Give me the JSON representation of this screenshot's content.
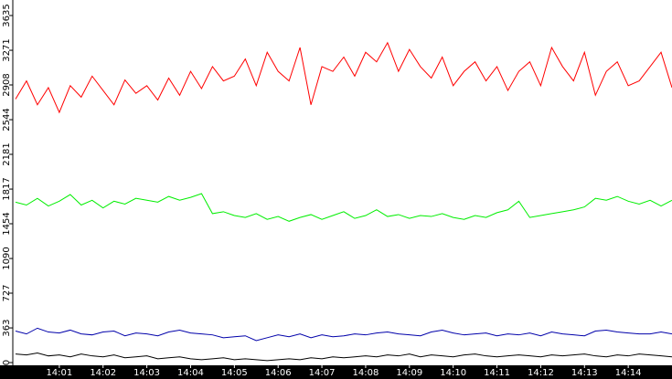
{
  "chart_data": {
    "type": "line",
    "x": [
      0,
      0.25,
      0.5,
      0.75,
      1,
      1.25,
      1.5,
      1.75,
      2,
      2.25,
      2.5,
      2.75,
      3,
      3.25,
      3.5,
      3.75,
      4,
      4.25,
      4.5,
      4.75,
      5,
      5.25,
      5.5,
      5.75,
      6,
      6.25,
      6.5,
      6.75,
      7,
      7.25,
      7.5,
      7.75,
      8,
      8.25,
      8.5,
      8.75,
      9,
      9.25,
      9.5,
      9.75,
      10,
      10.25,
      10.5,
      10.75,
      11,
      11.25,
      11.5,
      11.75,
      12,
      12.25,
      12.5,
      12.75,
      13,
      13.25,
      13.5,
      13.75,
      14,
      14.25,
      14.5,
      14.75,
      15
    ],
    "series": [
      {
        "color": "#ff0000",
        "values": [
          2760,
          2950,
          2700,
          2880,
          2620,
          2900,
          2780,
          3000,
          2850,
          2700,
          2960,
          2820,
          2900,
          2750,
          2980,
          2800,
          3050,
          2870,
          3100,
          2950,
          3000,
          3180,
          2900,
          3250,
          3050,
          2950,
          3300,
          2700,
          3100,
          3050,
          3200,
          3000,
          3250,
          3150,
          3350,
          3050,
          3280,
          3100,
          2980,
          3200,
          2900,
          3050,
          3150,
          2950,
          3100,
          2850,
          3050,
          3150,
          2900,
          3300,
          3100,
          2950,
          3250,
          2800,
          3050,
          3150,
          2900,
          2950,
          3100,
          3250,
          2880
        ]
      },
      {
        "color": "#00ee00",
        "values": [
          1680,
          1650,
          1720,
          1640,
          1690,
          1760,
          1650,
          1700,
          1620,
          1690,
          1660,
          1720,
          1700,
          1680,
          1740,
          1700,
          1730,
          1770,
          1560,
          1580,
          1540,
          1520,
          1560,
          1500,
          1530,
          1480,
          1520,
          1550,
          1500,
          1540,
          1580,
          1510,
          1540,
          1600,
          1530,
          1550,
          1510,
          1540,
          1530,
          1560,
          1520,
          1500,
          1540,
          1520,
          1570,
          1600,
          1690,
          1520,
          1540,
          1560,
          1580,
          1600,
          1630,
          1720,
          1700,
          1740,
          1690,
          1660,
          1700,
          1640,
          1700
        ]
      },
      {
        "color": "#0000aa",
        "values": [
          330,
          300,
          360,
          320,
          310,
          340,
          300,
          290,
          320,
          330,
          280,
          310,
          300,
          280,
          320,
          340,
          310,
          300,
          290,
          260,
          270,
          280,
          230,
          260,
          290,
          270,
          300,
          260,
          290,
          270,
          280,
          300,
          290,
          310,
          320,
          300,
          290,
          280,
          320,
          340,
          310,
          290,
          300,
          310,
          280,
          300,
          290,
          310,
          280,
          320,
          300,
          290,
          280,
          330,
          340,
          320,
          310,
          300,
          300,
          320,
          300
        ]
      },
      {
        "color": "#000000",
        "values": [
          90,
          80,
          100,
          70,
          80,
          60,
          90,
          70,
          60,
          80,
          50,
          60,
          70,
          40,
          50,
          60,
          40,
          30,
          40,
          50,
          30,
          40,
          30,
          20,
          30,
          40,
          30,
          50,
          40,
          60,
          50,
          60,
          70,
          60,
          80,
          70,
          90,
          60,
          80,
          70,
          60,
          80,
          90,
          70,
          60,
          70,
          80,
          70,
          60,
          80,
          70,
          80,
          90,
          70,
          60,
          80,
          70,
          90,
          80,
          70,
          60
        ]
      }
    ],
    "xlim": [
      0,
      15
    ],
    "xticks": [
      {
        "value": 1,
        "label": "14:01"
      },
      {
        "value": 2,
        "label": "14:02"
      },
      {
        "value": 3,
        "label": "14:03"
      },
      {
        "value": 4,
        "label": "14:04"
      },
      {
        "value": 5,
        "label": "14:05"
      },
      {
        "value": 6,
        "label": "14:06"
      },
      {
        "value": 7,
        "label": "14:07"
      },
      {
        "value": 8,
        "label": "14:08"
      },
      {
        "value": 9,
        "label": "14:09"
      },
      {
        "value": 10,
        "label": "14:10"
      },
      {
        "value": 11,
        "label": "14:11"
      },
      {
        "value": 12,
        "label": "14:12"
      },
      {
        "value": 13,
        "label": "14:13"
      },
      {
        "value": 14,
        "label": "14:14"
      }
    ],
    "ylim": [
      0,
      3635
    ],
    "yticks": [
      0,
      363,
      727,
      1090,
      1454,
      1817,
      2181,
      2544,
      2908,
      3271,
      3635
    ]
  }
}
